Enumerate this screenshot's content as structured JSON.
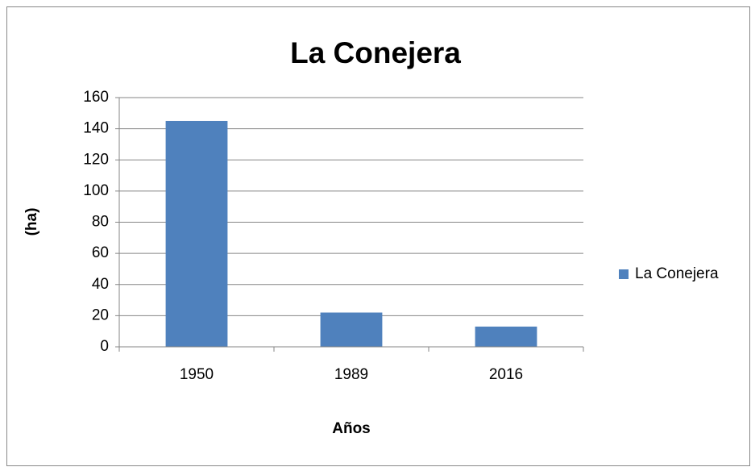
{
  "chart_data": {
    "type": "bar",
    "title": "La Conejera",
    "categories": [
      "1950",
      "1989",
      "2016"
    ],
    "series": [
      {
        "name": "La Conejera",
        "color": "#4f81bd",
        "values": [
          145,
          22,
          13
        ]
      }
    ],
    "xlabel": "Años",
    "ylabel": "(ha)",
    "ylim": [
      0,
      160
    ],
    "yticks": [
      0,
      20,
      40,
      60,
      80,
      100,
      120,
      140,
      160
    ],
    "grid": true,
    "legend": "right"
  }
}
